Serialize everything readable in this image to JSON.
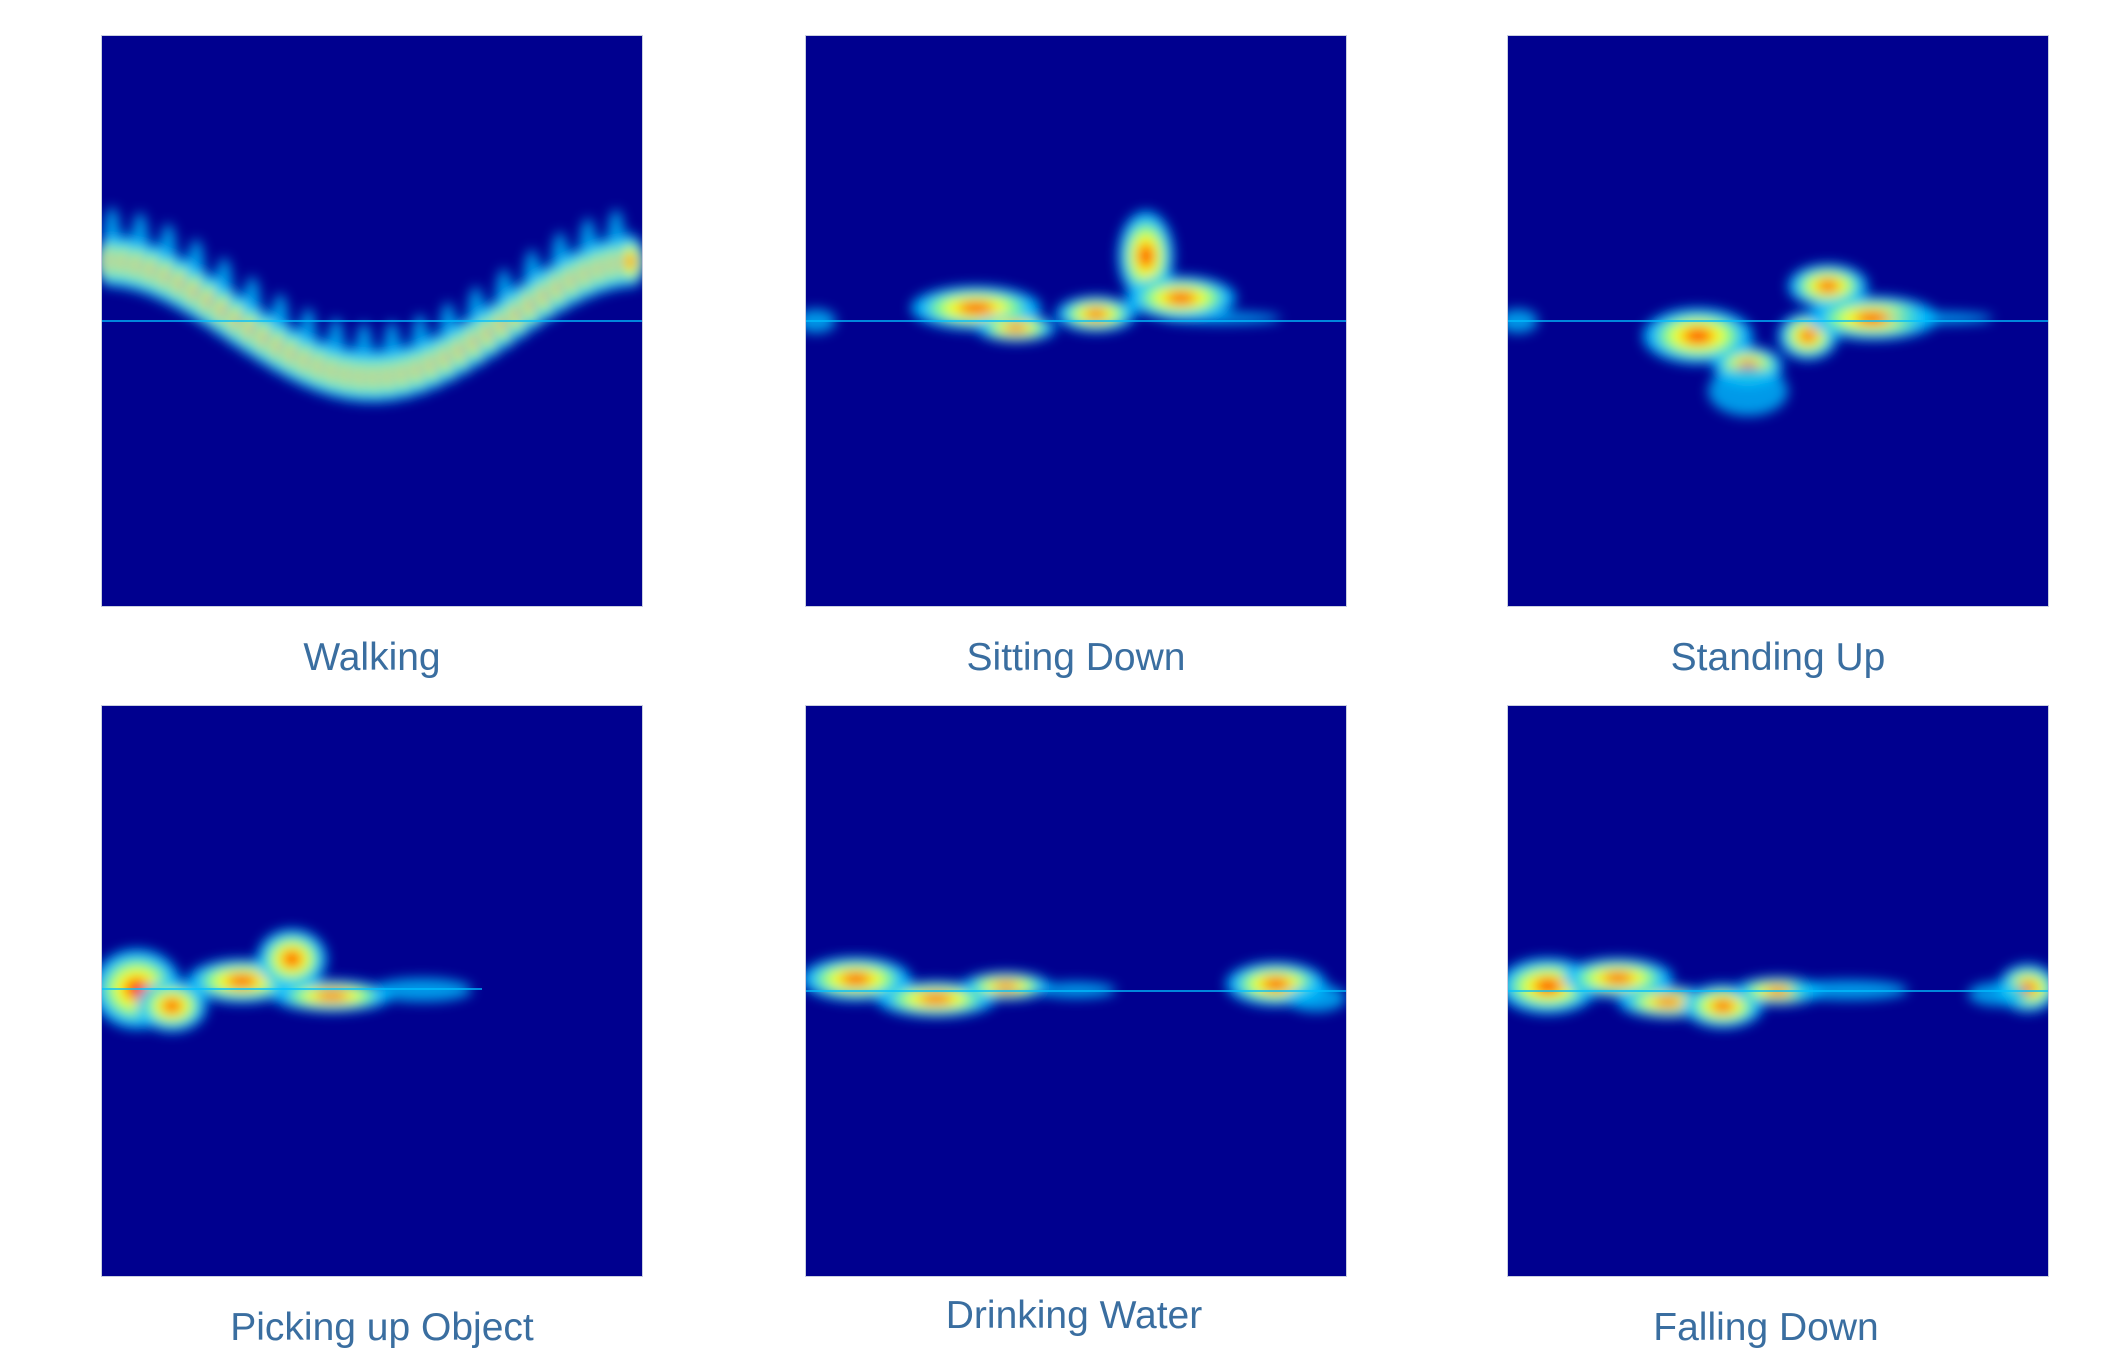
{
  "panels": [
    {
      "label": "Walking",
      "colormap": "jet"
    },
    {
      "label": "Sitting Down",
      "colormap": "jet"
    },
    {
      "label": "Standing Up",
      "colormap": "jet"
    },
    {
      "label": "Picking up Object",
      "colormap": "jet"
    },
    {
      "label": "Drinking Water",
      "colormap": "jet"
    },
    {
      "label": "Falling Down",
      "colormap": "jet"
    }
  ],
  "colors": {
    "background": "#00008f",
    "low": "#00bfff",
    "mid": "#80ff80",
    "high": "#ffff00",
    "peak": "#ff2000",
    "caption_text": "#3a6ea0"
  }
}
